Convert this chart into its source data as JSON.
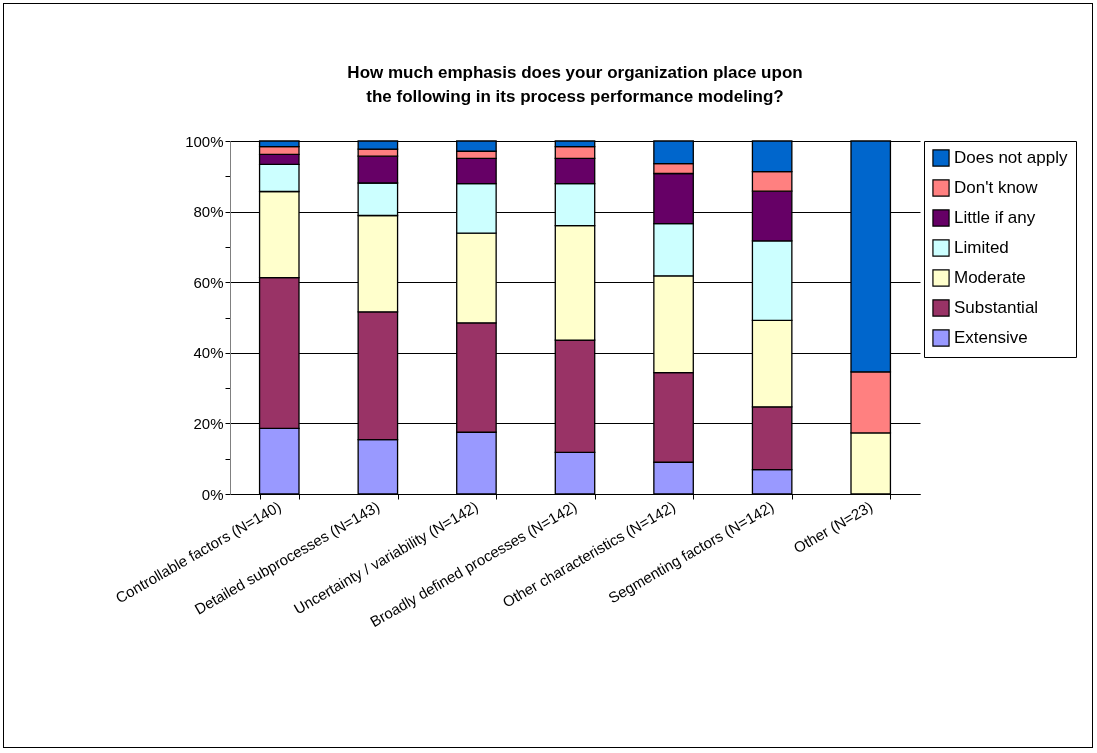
{
  "chart_data": {
    "type": "bar",
    "stacked": true,
    "title": "How much emphasis does your organization place upon the following in its process performance modeling?",
    "categories": [
      "Controllable factors (N=140)",
      "Detailed subprocesses (N=143)",
      "Uncertainty / variability (N=142)",
      "Broadly defined processes (N=142)",
      "Other characteristics (N=142)",
      "Segmenting factors (N=142)",
      "Other (N=23)"
    ],
    "series": [
      {
        "name": "Extensive",
        "color": "#9999ff",
        "values": [
          18.6,
          15.4,
          17.5,
          11.8,
          9.0,
          6.9,
          null
        ]
      },
      {
        "name": "Substantial",
        "color": "#993366",
        "values": [
          42.7,
          36.2,
          31.0,
          31.8,
          25.4,
          17.8,
          null
        ]
      },
      {
        "name": "Moderate",
        "color": "#ffffcc",
        "values": [
          24.4,
          27.3,
          25.4,
          32.4,
          27.4,
          24.5,
          17.3
        ]
      },
      {
        "name": "Limited",
        "color": "#ccffff",
        "values": [
          7.7,
          9.2,
          14.0,
          11.9,
          14.8,
          22.5,
          null
        ]
      },
      {
        "name": "Little if any",
        "color": "#660066",
        "values": [
          2.8,
          7.6,
          7.2,
          7.2,
          14.2,
          14.1,
          null
        ]
      },
      {
        "name": "Don't know",
        "color": "#ff8080",
        "values": [
          2.2,
          2.0,
          2.0,
          3.3,
          2.8,
          5.5,
          17.3
        ]
      },
      {
        "name": "Does not apply",
        "color": "#0066cc",
        "values": [
          1.6,
          2.3,
          2.9,
          1.6,
          6.4,
          8.7,
          65.4
        ]
      }
    ],
    "ylim": [
      0,
      100
    ],
    "yticks": [
      {
        "value": 0,
        "label": "0%"
      },
      {
        "value": 10,
        "label": null
      },
      {
        "value": 20,
        "label": "20%"
      },
      {
        "value": 30,
        "label": null
      },
      {
        "value": 40,
        "label": "40%"
      },
      {
        "value": 50,
        "label": null
      },
      {
        "value": 60,
        "label": "60%"
      },
      {
        "value": 70,
        "label": null
      },
      {
        "value": 80,
        "label": "80%"
      },
      {
        "value": 90,
        "label": null
      },
      {
        "value": 100,
        "label": "100%"
      }
    ],
    "grid": "y",
    "legend": "right"
  }
}
